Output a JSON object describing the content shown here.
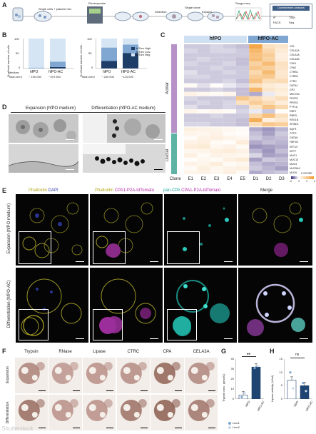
{
  "panels": {
    "a": "A",
    "b": "B",
    "c": "C",
    "d": "D",
    "e": "E",
    "f": "F",
    "g": "G",
    "h": "H"
  },
  "panel_a": {
    "steps": [
      "Single cells + plasmid mix",
      "Electroporate",
      "Selection",
      "Single clone",
      "Expand",
      "Sanger seq",
      "Downstream analysis"
    ],
    "box_items": [
      "IF",
      "TEM",
      "FACS",
      "Seq"
    ]
  },
  "panel_b": {
    "left_ylabel": "% of total number of cells",
    "right_ylabel": "% of total number of cells",
    "medium_label": "Medium:",
    "total_label": "Total cell #",
    "total_label2": "Total cell #",
    "legend": [
      "tdTom High",
      "tdTom Low",
      "tdTom Neg"
    ],
    "yticks": [
      "100",
      "50",
      "0"
    ],
    "yticks2": [
      "100",
      "50",
      "0"
    ],
    "cat1": "hfPO",
    "cat2": "hfPO-AC",
    "cat3": "hfPO",
    "cat4": "hfPO-AC",
    "n1": "~ 190 000",
    "n2": "~370 000",
    "n3": "~ 240 000",
    "n4": "~124 000"
  },
  "panel_c": {
    "group_left": "hfPO",
    "group_right": "hfPO-AC",
    "acinar": "Acinar",
    "ductal": "Ductal",
    "clone_label": "Clone",
    "clones": [
      "E1",
      "E2",
      "E3",
      "E4",
      "E5",
      "D1",
      "D2",
      "D3"
    ],
    "acinar_genes": [
      "CEL",
      "CELA2A",
      "CELA3A",
      "CELA3B",
      "CPA1",
      "CPA2",
      "CTRB1",
      "CTRB2",
      "CTRC",
      "GATA4",
      "GP2",
      "MECOM",
      "PRSS2",
      "PRSS3",
      "PTF1A",
      "RBPJ",
      "RBPJL",
      "REG1B",
      "SPINK1"
    ],
    "ductal_genes": [
      "AQP1",
      "CFTR",
      "GATA6",
      "HNF1B",
      "KRT19",
      "KRT7",
      "MUC1",
      "MUC13",
      "MUC4",
      "MUC5AC",
      "MUC6"
    ],
    "colorbar_label": "Z-SCORE",
    "colorbar_ticks": [
      "-2",
      "0",
      "2",
      "4"
    ]
  },
  "panel_d": {
    "expansion": "Expansion (hfPO medium)",
    "differentiation": "Differentiation (hfPO-AC medium)"
  },
  "panel_e": {
    "col1_a": "Phalloidin",
    "col1_b": "DAPI",
    "col2_a": "Phalloidin",
    "col2_b": "CPA1-P2A-tdTomato",
    "col3_a": "pan-CPA",
    "col3_b": "CPA1-P2A-tdTomato",
    "col4": "Merge",
    "row1": "Expansion (hfPO medium)",
    "row2": "Differentiation (hfPO-AC)"
  },
  "panel_f": {
    "stains": [
      "Trypsin",
      "RNase",
      "Lipase",
      "CTRC",
      "CPA",
      "CELA3A"
    ],
    "row1": "Expansion",
    "row2": "Differentiation"
  },
  "panel_g": {
    "ylabel": "Trypsin conc. (pmol/L)",
    "significance": "**",
    "categories": [
      "hfPO",
      "hfPO-AC"
    ],
    "yticks": [
      "40",
      "30",
      "20",
      "10",
      "0"
    ],
    "legend": [
      "Line1",
      "Line2"
    ]
  },
  "panel_h": {
    "ylabel": "Lipase activity (U/ml)",
    "significance": "ns",
    "categories": [
      "hfPO",
      "hfPO-AC"
    ],
    "yticks": [
      "15",
      "10",
      "5",
      "0"
    ]
  },
  "colors": {
    "navy": "#1f3f66",
    "light": "#cfe0f2",
    "mid": "#7ea9d6",
    "dark": "#1e4471",
    "heat_low": "#3b2b7a",
    "heat_high": "#f29a2e",
    "dot1": "#7ba4cf",
    "dot2": "#c8d7e8"
  },
  "watermark": "Shutterstock",
  "chart_data": [
    {
      "type": "bar",
      "name": "B-left",
      "categories": [
        "hfPO",
        "hfPO-AC"
      ],
      "series": [
        {
          "name": "tdTom High",
          "values": [
            0,
            5
          ]
        },
        {
          "name": "tdTom Low",
          "values": [
            3,
            18
          ]
        },
        {
          "name": "tdTom Neg",
          "values": [
            97,
            77
          ]
        }
      ],
      "ylim": [
        0,
        100
      ],
      "stacked": true
    },
    {
      "type": "bar",
      "name": "B-right",
      "categories": [
        "hfPO",
        "hfPO-AC"
      ],
      "series": [
        {
          "name": "tdTom High",
          "values": [
            25,
            52
          ]
        },
        {
          "name": "tdTom Low",
          "values": [
            45,
            28
          ]
        },
        {
          "name": "tdTom Neg",
          "values": [
            30,
            20
          ]
        }
      ],
      "ylim": [
        0,
        100
      ],
      "stacked": true
    },
    {
      "type": "heatmap",
      "name": "C",
      "x": [
        "E1",
        "E2",
        "E3",
        "E4",
        "E5",
        "D1",
        "D2",
        "D3"
      ],
      "y": [
        "CEL",
        "CELA2A",
        "CELA3A",
        "CELA3B",
        "CPA1",
        "CPA2",
        "CTRB1",
        "CTRB2",
        "CTRC",
        "GATA4",
        "GP2",
        "MECOM",
        "PRSS2",
        "PRSS3",
        "PTF1A",
        "RBPJ",
        "RBPJL",
        "REG1B",
        "SPINK1",
        "AQP1",
        "CFTR",
        "GATA6",
        "HNF1B",
        "KRT19",
        "KRT7",
        "MUC1",
        "MUC13",
        "MUC4",
        "MUC5AC",
        "MUC6"
      ],
      "values": [
        [
          -0.5,
          -0.5,
          -0.4,
          -0.5,
          -0.6,
          3.5,
          1.2,
          1.0
        ],
        [
          -0.4,
          -0.5,
          -0.4,
          -0.4,
          -0.5,
          2.8,
          1.6,
          0.8
        ],
        [
          -0.5,
          -0.5,
          -0.5,
          -0.5,
          -0.5,
          2.5,
          2.0,
          0.6
        ],
        [
          -0.5,
          -0.4,
          -0.5,
          -0.5,
          -0.6,
          2.6,
          1.8,
          0.7
        ],
        [
          -0.4,
          -0.5,
          -0.5,
          -0.4,
          -0.6,
          1.8,
          2.6,
          1.2
        ],
        [
          -0.5,
          -0.5,
          -0.4,
          -0.5,
          -0.5,
          2.2,
          1.9,
          1.1
        ],
        [
          -0.3,
          -0.5,
          -0.5,
          -0.4,
          -0.5,
          1.5,
          2.7,
          0.9
        ],
        [
          -0.4,
          -0.4,
          -0.5,
          -0.5,
          -0.5,
          2.0,
          2.1,
          1.0
        ],
        [
          -0.5,
          -0.5,
          -0.5,
          -0.4,
          -0.6,
          2.4,
          1.3,
          1.4
        ],
        [
          0.2,
          -0.3,
          0.1,
          -0.2,
          -0.4,
          1.2,
          0.8,
          0.6
        ],
        [
          -0.5,
          -0.5,
          -0.4,
          -0.5,
          -0.6,
          2.9,
          1.0,
          0.8
        ],
        [
          0.5,
          0.3,
          0.2,
          0.4,
          -0.6,
          -0.8,
          -0.2,
          0.6
        ],
        [
          -0.4,
          -0.5,
          -0.5,
          -0.5,
          2.2,
          1.5,
          0.9,
          1.3
        ],
        [
          -0.5,
          -0.4,
          -0.5,
          -0.4,
          1.2,
          2.0,
          1.4,
          0.7
        ],
        [
          -0.3,
          -0.5,
          -0.5,
          -0.4,
          -0.5,
          1.1,
          2.3,
          1.5
        ],
        [
          0.4,
          0.2,
          0.3,
          0.2,
          -0.4,
          -0.2,
          -0.5,
          0.1
        ],
        [
          -0.5,
          -0.5,
          -0.4,
          -0.5,
          -0.5,
          1.6,
          2.5,
          1.2
        ],
        [
          -0.5,
          -0.5,
          -0.5,
          -0.5,
          -0.6,
          3.2,
          0.6,
          0.9
        ],
        [
          -0.4,
          -0.4,
          -0.5,
          -0.5,
          -0.6,
          1.4,
          2.2,
          1.9
        ],
        [
          0.6,
          0.5,
          0.4,
          0.3,
          0.2,
          -0.8,
          -1.0,
          -0.7
        ],
        [
          0.4,
          0.3,
          0.5,
          0.2,
          0.1,
          -0.6,
          -0.9,
          -0.5
        ],
        [
          0.2,
          0.5,
          0.6,
          0.4,
          0.3,
          -0.5,
          -0.7,
          -0.6
        ],
        [
          0.5,
          0.6,
          0.2,
          0.1,
          0.7,
          -0.8,
          -0.6,
          -0.7
        ],
        [
          0.7,
          0.8,
          0.3,
          0.5,
          0.2,
          -1.0,
          -0.9,
          -0.8
        ],
        [
          0.3,
          0.4,
          0.6,
          0.7,
          0.5,
          -0.7,
          -1.0,
          -0.6
        ],
        [
          0.6,
          0.2,
          0.5,
          0.4,
          0.3,
          -0.4,
          -0.9,
          -0.8
        ],
        [
          0.1,
          0.3,
          0.2,
          0.6,
          0.8,
          -0.9,
          -0.5,
          -0.6
        ],
        [
          0.5,
          0.4,
          0.7,
          0.2,
          0.3,
          -0.6,
          -0.8,
          -0.7
        ],
        [
          0.2,
          0.6,
          0.3,
          0.5,
          0.6,
          -0.5,
          -0.7,
          -0.9
        ],
        [
          0.4,
          0.5,
          0.3,
          0.6,
          0.2,
          -0.8,
          -0.6,
          -0.5
        ]
      ],
      "zlim": [
        -2,
        4
      ]
    },
    {
      "type": "bar",
      "name": "G",
      "categories": [
        "hfPO",
        "hfPO-AC"
      ],
      "values": [
        4,
        32
      ],
      "ylim": [
        0,
        40
      ],
      "points": {
        "Line1": [
          2,
          31
        ],
        "Line2": [
          6,
          33
        ]
      }
    },
    {
      "type": "bar",
      "name": "H",
      "categories": [
        "hfPO",
        "hfPO-AC"
      ],
      "values": [
        7,
        5
      ],
      "ylim": [
        0,
        15
      ],
      "points": {
        "Line1": [
          10,
          6
        ],
        "Line2": [
          4,
          3
        ]
      }
    }
  ]
}
